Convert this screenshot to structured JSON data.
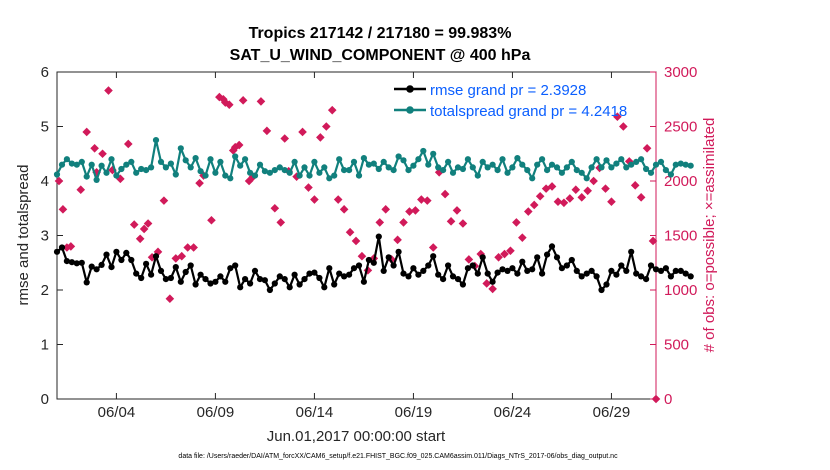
{
  "chart_data": {
    "type": "line",
    "title_line1": "Tropics 217142 / 217180 = 99.983%",
    "title_line2": "SAT_U_WIND_COMPONENT @ 400 hPa",
    "xlabel": "Jun.01,2017 00:00:00 start",
    "ylabel_left": "rmse and totalspread",
    "ylabel_right": "# of obs: o=possible; ×=assimilated",
    "footnote": "data file: /Users/raeder/DAI/ATM_forcXX/CAM6_setup/f.e21.FHIST_BGC.f09_025.CAM6assim.011/Diags_NTrS_2017-06/obs_diag_output.nc",
    "xlim": [
      1.0,
      31.25
    ],
    "ylim_left": [
      0,
      6
    ],
    "ylim_right": [
      0,
      3000
    ],
    "x_ticks": [
      {
        "value": 4,
        "label": "06/04"
      },
      {
        "value": 9,
        "label": "06/09"
      },
      {
        "value": 14,
        "label": "06/14"
      },
      {
        "value": 19,
        "label": "06/19"
      },
      {
        "value": 24,
        "label": "06/24"
      },
      {
        "value": 29,
        "label": "06/29"
      }
    ],
    "y_ticks_left": [
      0,
      1,
      2,
      3,
      4,
      5,
      6
    ],
    "y_ticks_right": [
      0,
      500,
      1000,
      1500,
      2000,
      2500,
      3000
    ],
    "x_start": 1.0,
    "x_step": 0.25,
    "series": [
      {
        "name": "rmse",
        "legend": "rmse grand pr = 2.3928",
        "color": "#000000",
        "values": [
          2.7,
          2.78,
          2.53,
          2.51,
          2.49,
          2.5,
          2.14,
          2.43,
          2.38,
          2.46,
          2.65,
          2.42,
          2.7,
          2.55,
          2.68,
          2.55,
          2.3,
          2.22,
          2.48,
          2.28,
          2.62,
          2.35,
          2.2,
          2.22,
          2.42,
          2.15,
          2.33,
          2.45,
          2.1,
          2.28,
          2.2,
          2.12,
          2.15,
          2.25,
          2.15,
          2.4,
          2.45,
          2.05,
          2.2,
          2.12,
          2.35,
          2.2,
          2.18,
          2.0,
          2.12,
          2.25,
          2.2,
          2.05,
          2.28,
          2.1,
          2.2,
          2.3,
          2.32,
          2.22,
          2.05,
          2.4,
          2.1,
          2.3,
          2.25,
          2.28,
          2.4,
          2.45,
          2.15,
          2.55,
          2.5,
          2.98,
          2.35,
          2.6,
          2.45,
          2.7,
          2.3,
          2.25,
          2.4,
          2.28,
          2.35,
          2.45,
          2.62,
          2.28,
          2.2,
          2.45,
          2.25,
          2.2,
          2.1,
          2.4,
          2.45,
          2.3,
          2.6,
          2.3,
          2.15,
          2.32,
          2.38,
          2.35,
          2.4,
          2.3,
          2.52,
          2.35,
          2.38,
          2.6,
          2.3,
          2.65,
          2.8,
          2.6,
          2.4,
          2.45,
          2.55,
          2.35,
          2.25,
          2.3,
          2.35,
          2.25,
          2.0,
          2.1,
          2.35,
          2.28,
          2.45,
          2.35,
          2.7,
          2.3,
          2.25,
          2.2,
          2.45,
          2.38,
          2.35,
          2.4,
          2.25,
          2.35,
          2.35,
          2.3,
          2.25
        ]
      },
      {
        "name": "totalspread",
        "legend": "totalspread grand pr = 4.2418",
        "color": "#11807d",
        "values": [
          4.12,
          4.3,
          4.4,
          4.32,
          4.3,
          4.35,
          4.08,
          4.3,
          4.02,
          4.28,
          4.15,
          4.4,
          4.1,
          4.22,
          4.3,
          4.35,
          4.15,
          4.22,
          4.2,
          4.25,
          4.75,
          4.35,
          4.25,
          4.32,
          4.12,
          4.6,
          4.38,
          4.25,
          4.42,
          4.18,
          4.1,
          4.4,
          4.15,
          4.35,
          4.1,
          4.05,
          4.45,
          4.28,
          4.4,
          4.15,
          4.1,
          4.3,
          4.18,
          4.15,
          4.2,
          4.25,
          4.2,
          4.15,
          4.35,
          4.1,
          4.25,
          4.1,
          4.35,
          4.15,
          4.25,
          4.05,
          4.1,
          4.4,
          4.2,
          4.2,
          4.35,
          4.1,
          4.42,
          4.3,
          4.32,
          4.22,
          4.35,
          4.25,
          4.2,
          4.45,
          4.38,
          4.2,
          4.28,
          4.4,
          4.55,
          4.3,
          4.5,
          4.25,
          4.2,
          4.35,
          4.15,
          4.25,
          4.22,
          4.4,
          4.25,
          4.1,
          4.35,
          4.25,
          4.3,
          4.2,
          4.4,
          4.15,
          4.25,
          4.42,
          4.3,
          4.2,
          4.05,
          4.3,
          4.4,
          4.2,
          4.3,
          4.25,
          4.15,
          4.25,
          4.35,
          4.2,
          4.15,
          4.05,
          4.25,
          4.4,
          4.25,
          4.38,
          4.25,
          4.32,
          4.4,
          4.25,
          4.3,
          4.35,
          4.4,
          4.22,
          4.15,
          4.3,
          4.35,
          4.2,
          4.12,
          4.3,
          4.32,
          4.3,
          4.28
        ]
      }
    ],
    "scatter_series": [
      {
        "name": "assimilated",
        "color": "#d11a5a",
        "points": [
          {
            "x": 1.1,
            "y": 2000
          },
          {
            "x": 1.3,
            "y": 1740
          },
          {
            "x": 1.5,
            "y": 1390
          },
          {
            "x": 1.7,
            "y": 1400
          },
          {
            "x": 2.2,
            "y": 1920
          },
          {
            "x": 2.5,
            "y": 2450
          },
          {
            "x": 2.9,
            "y": 2300
          },
          {
            "x": 3.0,
            "y": 2080
          },
          {
            "x": 3.3,
            "y": 2250
          },
          {
            "x": 3.6,
            "y": 2830
          },
          {
            "x": 3.8,
            "y": 2100
          },
          {
            "x": 4.2,
            "y": 2020
          },
          {
            "x": 4.6,
            "y": 2340
          },
          {
            "x": 4.9,
            "y": 1600
          },
          {
            "x": 5.2,
            "y": 1470
          },
          {
            "x": 5.4,
            "y": 1560
          },
          {
            "x": 5.6,
            "y": 1610
          },
          {
            "x": 5.8,
            "y": 1300
          },
          {
            "x": 6.1,
            "y": 1350
          },
          {
            "x": 6.4,
            "y": 1820
          },
          {
            "x": 6.7,
            "y": 920
          },
          {
            "x": 7.0,
            "y": 1290
          },
          {
            "x": 7.3,
            "y": 1310
          },
          {
            "x": 7.6,
            "y": 1390
          },
          {
            "x": 7.9,
            "y": 1390
          },
          {
            "x": 8.2,
            "y": 1980
          },
          {
            "x": 8.4,
            "y": 2050
          },
          {
            "x": 8.8,
            "y": 1640
          },
          {
            "x": 9.2,
            "y": 2770
          },
          {
            "x": 9.4,
            "y": 2750
          },
          {
            "x": 9.5,
            "y": 2720
          },
          {
            "x": 9.7,
            "y": 2700
          },
          {
            "x": 9.9,
            "y": 2280
          },
          {
            "x": 10.0,
            "y": 2310
          },
          {
            "x": 10.2,
            "y": 2330
          },
          {
            "x": 10.4,
            "y": 2740
          },
          {
            "x": 10.7,
            "y": 2000
          },
          {
            "x": 10.9,
            "y": 2040
          },
          {
            "x": 11.3,
            "y": 2730
          },
          {
            "x": 11.6,
            "y": 2460
          },
          {
            "x": 12.0,
            "y": 1750
          },
          {
            "x": 12.3,
            "y": 1620
          },
          {
            "x": 12.5,
            "y": 2390
          },
          {
            "x": 12.7,
            "y": 2090
          },
          {
            "x": 13.1,
            "y": 2040
          },
          {
            "x": 13.4,
            "y": 2450
          },
          {
            "x": 13.7,
            "y": 1940
          },
          {
            "x": 14.0,
            "y": 1830
          },
          {
            "x": 14.3,
            "y": 2400
          },
          {
            "x": 14.6,
            "y": 2500
          },
          {
            "x": 14.9,
            "y": 2650
          },
          {
            "x": 15.2,
            "y": 1830
          },
          {
            "x": 15.5,
            "y": 1740
          },
          {
            "x": 15.8,
            "y": 1530
          },
          {
            "x": 16.1,
            "y": 1450
          },
          {
            "x": 16.4,
            "y": 1310
          },
          {
            "x": 16.7,
            "y": 1180
          },
          {
            "x": 17.0,
            "y": 1290
          },
          {
            "x": 17.3,
            "y": 1620
          },
          {
            "x": 17.6,
            "y": 1740
          },
          {
            "x": 17.9,
            "y": 1280
          },
          {
            "x": 18.2,
            "y": 1460
          },
          {
            "x": 18.5,
            "y": 1620
          },
          {
            "x": 18.8,
            "y": 1720
          },
          {
            "x": 19.1,
            "y": 1730
          },
          {
            "x": 19.4,
            "y": 1830
          },
          {
            "x": 19.7,
            "y": 1820
          },
          {
            "x": 20.0,
            "y": 1390
          },
          {
            "x": 20.3,
            "y": 2080
          },
          {
            "x": 20.6,
            "y": 1880
          },
          {
            "x": 20.9,
            "y": 1630
          },
          {
            "x": 21.2,
            "y": 1730
          },
          {
            "x": 21.5,
            "y": 1610
          },
          {
            "x": 21.8,
            "y": 1280
          },
          {
            "x": 22.1,
            "y": 1220
          },
          {
            "x": 22.4,
            "y": 1330
          },
          {
            "x": 22.7,
            "y": 1060
          },
          {
            "x": 23.0,
            "y": 1010
          },
          {
            "x": 23.3,
            "y": 1300
          },
          {
            "x": 23.6,
            "y": 1330
          },
          {
            "x": 23.9,
            "y": 1360
          },
          {
            "x": 24.2,
            "y": 1620
          },
          {
            "x": 24.5,
            "y": 1480
          },
          {
            "x": 24.8,
            "y": 1720
          },
          {
            "x": 25.1,
            "y": 1780
          },
          {
            "x": 25.4,
            "y": 1860
          },
          {
            "x": 25.7,
            "y": 1930
          },
          {
            "x": 26.0,
            "y": 1950
          },
          {
            "x": 26.3,
            "y": 1810
          },
          {
            "x": 26.6,
            "y": 1800
          },
          {
            "x": 26.9,
            "y": 1840
          },
          {
            "x": 27.2,
            "y": 1920
          },
          {
            "x": 27.5,
            "y": 1850
          },
          {
            "x": 27.8,
            "y": 1910
          },
          {
            "x": 28.1,
            "y": 2000
          },
          {
            "x": 28.4,
            "y": 2120
          },
          {
            "x": 28.7,
            "y": 1930
          },
          {
            "x": 29.0,
            "y": 1810
          },
          {
            "x": 29.3,
            "y": 2590
          },
          {
            "x": 29.6,
            "y": 2500
          },
          {
            "x": 29.9,
            "y": 2180
          },
          {
            "x": 30.2,
            "y": 1960
          },
          {
            "x": 30.5,
            "y": 1850
          },
          {
            "x": 30.8,
            "y": 2300
          },
          {
            "x": 31.1,
            "y": 1450
          }
        ]
      }
    ],
    "legend_position": "top-right"
  }
}
